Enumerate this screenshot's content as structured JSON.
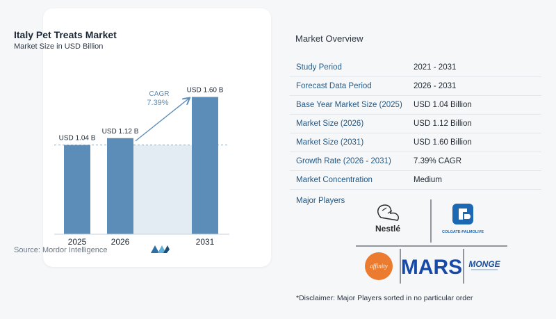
{
  "chart_data": {
    "type": "bar",
    "title": "Italy Pet Treats Market",
    "subtitle": "Market Size in USD Billion",
    "categories": [
      "2025",
      "2026",
      "2031"
    ],
    "values": [
      1.04,
      1.12,
      1.6
    ],
    "data_labels": [
      "USD 1.04 B",
      "USD 1.12 B",
      "USD 1.60 B"
    ],
    "ylim": [
      0,
      1.75
    ],
    "cagr_label": "CAGR",
    "cagr_value": "7.39%",
    "bar_color": "#5b8db8",
    "band_color": "#e4ecf3"
  },
  "source": "Source:  Mordor Intelligence",
  "overview": {
    "title": "Market Overview",
    "rows": [
      {
        "label": "Study Period",
        "value": "2021 - 2031"
      },
      {
        "label": "Forecast Data Period",
        "value": "2026 - 2031"
      },
      {
        "label": "Base Year Market Size (2025)",
        "value": "USD 1.04 Billion"
      },
      {
        "label": "Market Size (2026)",
        "value": "USD 1.12 Billion"
      },
      {
        "label": "Market Size (2031)",
        "value": "USD 1.60 Billion"
      },
      {
        "label": "Growth Rate (2026 - 2031)",
        "value": "7.39% CAGR"
      },
      {
        "label": "Market Concentration",
        "value": "Medium"
      }
    ]
  },
  "players": {
    "label": "Major Players",
    "logos": {
      "nestle": "Nestlé",
      "colgate": "COLGATE-PALMOLIVE",
      "affinity": "affinity",
      "mars": "MARS",
      "monge": "MONGE"
    }
  },
  "disclaimer": "*Disclaimer: Major Players sorted in no particular order",
  "colors": {
    "accent": "#245a86",
    "bar": "#5b8db8"
  }
}
